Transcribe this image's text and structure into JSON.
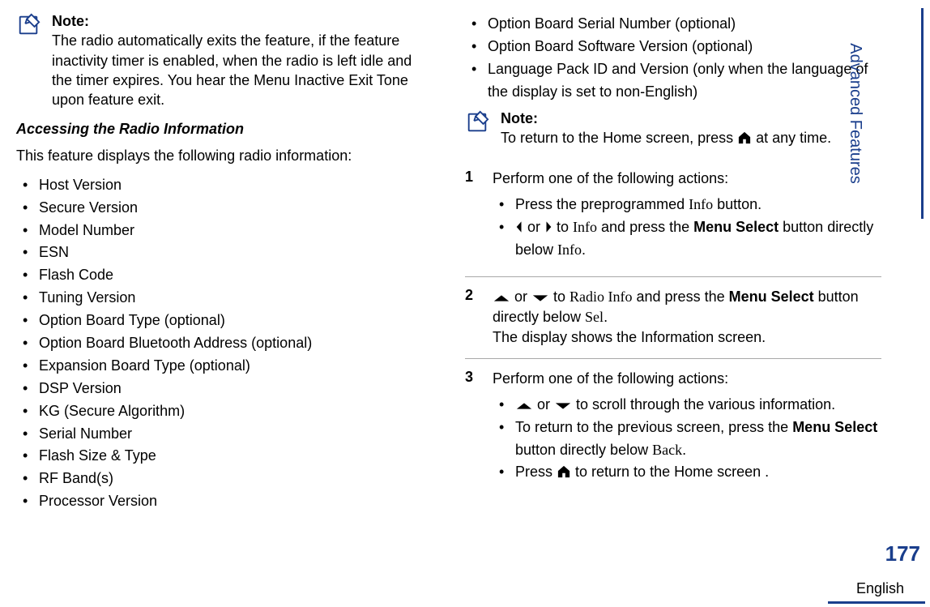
{
  "colors": {
    "accent": "#1a3e8c",
    "divider": "#a8a8a8",
    "text": "#000000"
  },
  "left": {
    "note_title": "Note:",
    "note_body": "The radio automatically exits the feature, if the feature inactivity timer is enabled, when the radio is left idle and the timer expires. You hear the Menu Inactive Exit Tone upon feature exit.",
    "subhead": "Accessing the Radio Information",
    "intro": "This feature displays the following radio information:",
    "items": [
      "Host Version",
      "Secure Version",
      "Model Number",
      "ESN",
      "Flash Code",
      "Tuning Version",
      "Option Board Type (optional)",
      "Option Board Bluetooth Address (optional)",
      "Expansion Board Type (optional)",
      "DSP Version",
      "KG (Secure Algorithm)",
      "Serial Number",
      "Flash Size & Type",
      "RF Band(s)",
      "Processor Version"
    ]
  },
  "right": {
    "top_items": [
      "Option Board Serial Number (optional)",
      "Option Board Software Version (optional)",
      "Language Pack ID and Version (only when the language of the display is set to non-English)"
    ],
    "note_title": "Note:",
    "note_pre": "To return to the Home screen, press ",
    "note_post": " at any time.",
    "step1_intro": "Perform one of the following actions:",
    "step1_a_pre": "Press the preprogrammed ",
    "step1_a_info": "Info",
    "step1_a_post": " button.",
    "step1_b_mid1": " or ",
    "step1_b_mid2": " to ",
    "step1_b_info": "Info",
    "step1_b_mid3": " and press the ",
    "step1_b_bold": "Menu Select",
    "step1_b_mid4": " button directly below ",
    "step1_b_info2": "Info",
    "step1_b_end": ".",
    "step2_mid1": " or ",
    "step2_mid2": " to ",
    "step2_radio": "Radio Info",
    "step2_mid3": " and press the ",
    "step2_bold": "Menu Select",
    "step2_mid4": " button directly below ",
    "step2_sel": "Sel",
    "step2_end": ".",
    "step2_line2": "The display shows the Information screen.",
    "step3_intro": "Perform one of the following actions:",
    "step3_a_mid1": " or ",
    "step3_a_post": " to scroll through the various information.",
    "step3_b_pre": "To return to the previous screen, press the ",
    "step3_b_bold": "Menu Select",
    "step3_b_mid": " button directly below ",
    "step3_b_back": "Back",
    "step3_b_end": ".",
    "step3_c_pre": "Press ",
    "step3_c_post": " to return to the Home screen ."
  },
  "side_tab": "Advanced Features",
  "page_number": "177",
  "language": "English"
}
